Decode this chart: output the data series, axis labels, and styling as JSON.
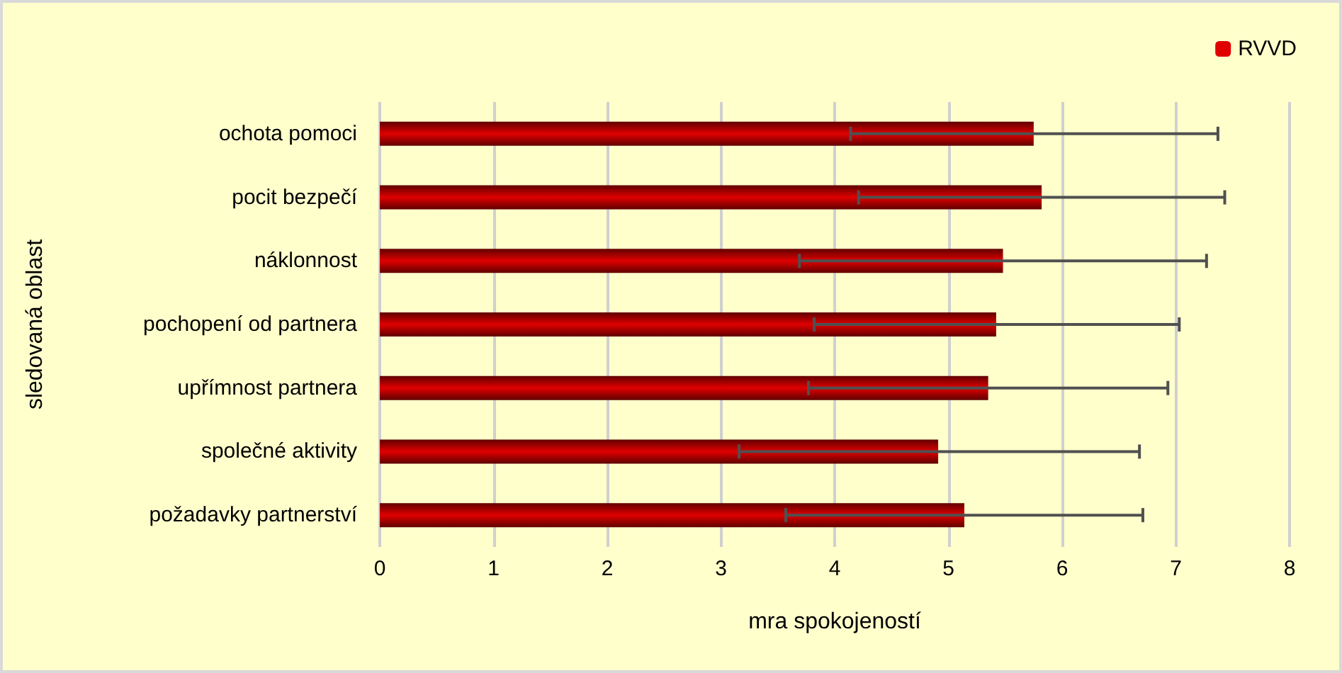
{
  "chart_data": {
    "type": "bar",
    "orientation": "horizontal",
    "xlabel": "mra spokojeností",
    "ylabel": "sledovaná oblast",
    "categories": [
      "ochota pomoci",
      "pocit bezpečí",
      "náklonnost",
      "pochopení od partnera",
      "upřímnost partnera",
      "společné aktivity",
      "požadavky partnerství"
    ],
    "series": [
      {
        "name": "RVVD",
        "color": "#e00000",
        "values": [
          5.75,
          5.82,
          5.48,
          5.42,
          5.35,
          4.91,
          5.14
        ],
        "errors": [
          [
            4.14,
            7.37
          ],
          [
            4.21,
            7.43
          ],
          [
            3.69,
            7.27
          ],
          [
            3.82,
            7.03
          ],
          [
            3.77,
            6.93
          ],
          [
            3.16,
            6.68
          ],
          [
            3.57,
            6.71
          ]
        ]
      }
    ],
    "xlim": [
      0,
      8
    ],
    "xticks": [
      0,
      1,
      2,
      3,
      4,
      5,
      6,
      7,
      8
    ],
    "grid": "x",
    "legend": "top right"
  }
}
